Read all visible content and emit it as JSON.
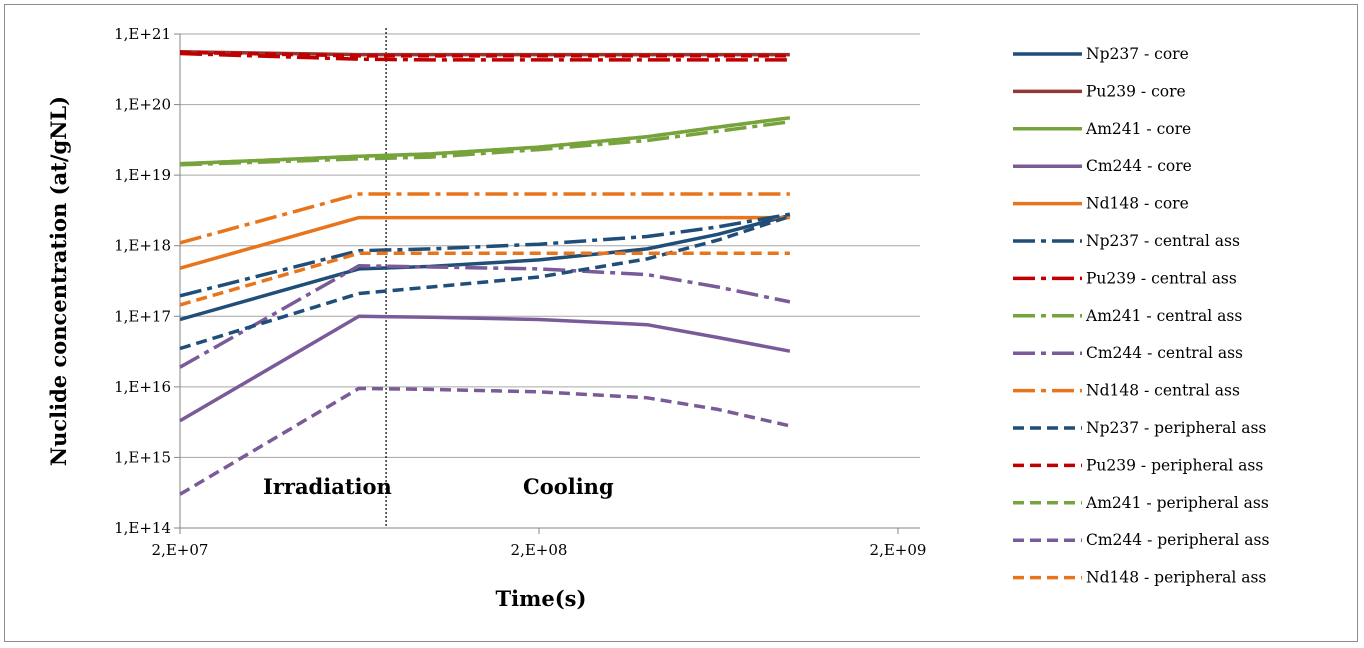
{
  "chart_data": {
    "type": "line",
    "title": "",
    "xlabel": "Time(s)",
    "ylabel": "Nuclide concentration (at/gNL)",
    "x_scale": "log",
    "y_scale": "log",
    "xlim": [
      20000000,
      2000000000
    ],
    "ylim": [
      100000000000000.0,
      1e+21
    ],
    "x_ticks": [
      20000000,
      200000000,
      2000000000
    ],
    "x_tick_labels": [
      "2,E+07",
      "2,E+08",
      "2,E+09"
    ],
    "y_ticks": [
      100000000000000.0,
      1000000000000000.0,
      1e+16,
      1e+17,
      1e+18,
      1e+19,
      1e+20,
      1e+21
    ],
    "y_tick_labels": [
      "1,E+14",
      "1,E+15",
      "1,E+16",
      "1,E+17",
      "1,E+18",
      "1,E+19",
      "1,E+20",
      "1,E+21"
    ],
    "grid": "horizontal",
    "legend_position": "right",
    "annotations": [
      "Irradiation",
      "Cooling"
    ],
    "divider_x": 75000000,
    "x": [
      20000000,
      63000000,
      100000000,
      200000000,
      400000000,
      630000000,
      1000000000
    ],
    "series": [
      {
        "name": "Np237 - core",
        "color": "#1f4e79",
        "dash": "solid",
        "values": [
          9e+16,
          4.7e+17,
          5.1e+17,
          6.3e+17,
          9e+17,
          1.45e+18,
          2.7e+18
        ]
      },
      {
        "name": "Pu239 - core",
        "color": "#943634",
        "dash": "solid",
        "values": [
          5.6e+20,
          5.1e+20,
          5.1e+20,
          5.1e+20,
          5.1e+20,
          5.1e+20,
          5.1e+20
        ]
      },
      {
        "name": "Am241 - core",
        "color": "#77a33c",
        "dash": "solid",
        "values": [
          1.45e+19,
          1.85e+19,
          2e+19,
          2.5e+19,
          3.5e+19,
          4.8e+19,
          6.5e+19
        ]
      },
      {
        "name": "Cm244 - core",
        "color": "#7a5a99",
        "dash": "solid",
        "values": [
          3300000000000000.0,
          1e+17,
          9.7e+16,
          9e+16,
          7.6e+16,
          5e+16,
          3.2e+16
        ]
      },
      {
        "name": "Nd148 - core",
        "color": "#e8741c",
        "dash": "solid",
        "values": [
          4.8e+17,
          2.5e+18,
          2.5e+18,
          2.5e+18,
          2.5e+18,
          2.5e+18,
          2.5e+18
        ]
      },
      {
        "name": "Np237 - central ass",
        "color": "#1f4e79",
        "dash": "dashdot",
        "values": [
          1.95e+17,
          8.5e+17,
          9e+17,
          1.05e+18,
          1.35e+18,
          1.85e+18,
          2.8e+18
        ]
      },
      {
        "name": "Pu239 - central ass",
        "color": "#c00000",
        "dash": "dashdot",
        "values": [
          5.3e+20,
          4.4e+20,
          4.3e+20,
          4.3e+20,
          4.3e+20,
          4.3e+20,
          4.3e+20
        ]
      },
      {
        "name": "Am241 - central ass",
        "color": "#77a33c",
        "dash": "dashdot",
        "values": [
          1.4e+19,
          1.7e+19,
          1.8e+19,
          2.3e+19,
          3.1e+19,
          4.2e+19,
          5.7e+19
        ]
      },
      {
        "name": "Cm244 - central ass",
        "color": "#7a5a99",
        "dash": "dashdot",
        "values": [
          1.9e+16,
          5.2e+17,
          5e+17,
          4.7e+17,
          3.9e+17,
          2.6e+17,
          1.6e+17
        ]
      },
      {
        "name": "Nd148 - central ass",
        "color": "#e8741c",
        "dash": "dashdot",
        "values": [
          1.1e+18,
          5.4e+18,
          5.4e+18,
          5.4e+18,
          5.4e+18,
          5.4e+18,
          5.4e+18
        ]
      },
      {
        "name": "Np237 - peripheral ass",
        "color": "#1f4e79",
        "dash": "dash",
        "values": [
          3.5e+16,
          2.1e+17,
          2.6e+17,
          3.6e+17,
          6.5e+17,
          1.2e+18,
          2.6e+18
        ]
      },
      {
        "name": "Pu239 - peripheral ass",
        "color": "#c00000",
        "dash": "dash",
        "values": [
          5.5e+20,
          4.9e+20,
          4.9e+20,
          4.9e+20,
          4.9e+20,
          4.9e+20,
          4.9e+20
        ]
      },
      {
        "name": "Am241 - peripheral ass",
        "color": "#77a33c",
        "dash": "dash",
        "values": [
          1.45e+19,
          1.85e+19,
          2e+19,
          2.5e+19,
          3.5e+19,
          4.8e+19,
          6.5e+19
        ]
      },
      {
        "name": "Cm244 - peripheral ass",
        "color": "#7a5a99",
        "dash": "dash",
        "values": [
          300000000000000.0,
          9500000000000000.0,
          9200000000000000.0,
          8500000000000000.0,
          7000000000000000.0,
          4800000000000000.0,
          2800000000000000.0
        ]
      },
      {
        "name": "Nd148 - peripheral ass",
        "color": "#e8741c",
        "dash": "dash",
        "values": [
          1.45e+17,
          7.8e+17,
          7.8e+17,
          7.8e+17,
          7.8e+17,
          7.8e+17,
          7.8e+17
        ]
      }
    ]
  }
}
